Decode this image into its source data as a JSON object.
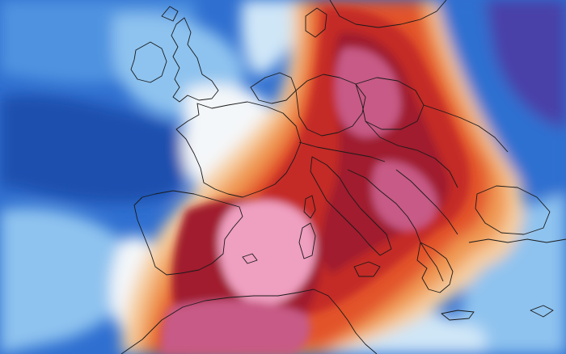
{
  "palette": {
    "deep_blue": "#1c4fae",
    "blue": "#2f6fd0",
    "mid_blue": "#4f93e0",
    "light_blue": "#8ec3ef",
    "pale_blue": "#cfe6f7",
    "white": "#f4f7f9",
    "pale_orange": "#f6cfa0",
    "orange": "#f09a52",
    "red_orange": "#e2522c",
    "red": "#c42a26",
    "crimson": "#a01c2f",
    "magenta": "#c75a86",
    "pink": "#ef9fc0",
    "violet": "#4a3fa8",
    "border": "#1a1a1a"
  }
}
